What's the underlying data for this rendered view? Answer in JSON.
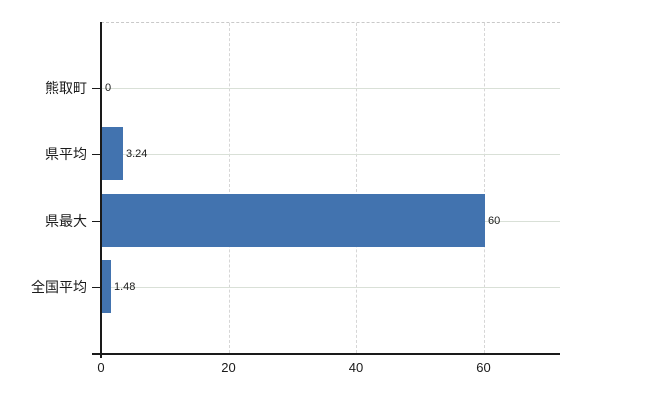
{
  "chart_data": {
    "type": "bar",
    "orientation": "horizontal",
    "title": "",
    "xlabel": "",
    "ylabel": "",
    "categories": [
      "熊取町",
      "県平均",
      "県最大",
      "全国平均"
    ],
    "values": [
      0,
      3.24,
      60,
      1.48
    ],
    "value_labels": [
      "0",
      "3.24",
      "60",
      "1.48"
    ],
    "xticks": [
      0,
      20,
      40,
      60
    ],
    "xtick_labels": [
      "0",
      "20",
      "40",
      "60"
    ],
    "xlim": [
      0,
      72
    ],
    "grid": true,
    "legend": false,
    "colors": {
      "bar": "#4273af",
      "axis": "#1a1a1a",
      "text": "#1b1b1b",
      "hgrid": "#d9e0d7",
      "vgrid": "#d6d6d6",
      "top_border": "#c9c9c9",
      "background": "#ffffff"
    }
  }
}
